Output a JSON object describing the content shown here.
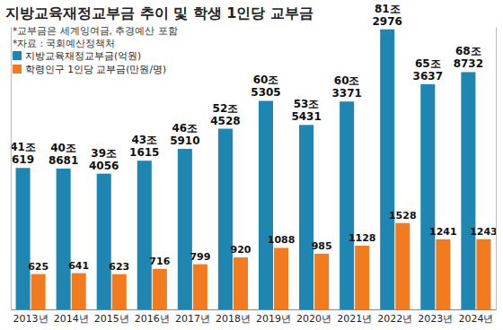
{
  "chart_data": {
    "type": "bar",
    "title": "지방교육재정교부금 추이 및 학생 1인당 교부금",
    "annotations": [
      "*교부금은 세계잉여금, 추경예산 포함",
      "*자료 : 국회예산정책처"
    ],
    "categories": [
      "2013년",
      "2014년",
      "2015년",
      "2016년",
      "2017년",
      "2018년",
      "2019년",
      "2020년",
      "2021년",
      "2022년",
      "2023년",
      "2024년"
    ],
    "series": [
      {
        "name": "지방교육재정교부금(억원)",
        "color": "#1f86b1",
        "values": [
          410619,
          408681,
          394056,
          431615,
          465910,
          524528,
          605305,
          535431,
          603371,
          812976,
          653637,
          688732
        ],
        "value_labels": [
          "41조 619",
          "40조 8681",
          "39조 4056",
          "43조 1615",
          "46조 5910",
          "52조 4528",
          "60조 5305",
          "53조 5431",
          "60조 3371",
          "81조 2976",
          "65조 3637",
          "68조 8732"
        ]
      },
      {
        "name": "학령인구 1인당 교부금(만원/명)",
        "color": "#f27a1f",
        "axis": "y2",
        "values": [
          625,
          641,
          623,
          716,
          799,
          920,
          1088,
          985,
          1128,
          1528,
          1241,
          1243
        ]
      }
    ],
    "ylim": [
      0,
      820000
    ],
    "y2lim": [
      0,
      5000
    ],
    "tick_labels": "x",
    "data_labels": true,
    "legend": "upper left",
    "grid": false
  }
}
